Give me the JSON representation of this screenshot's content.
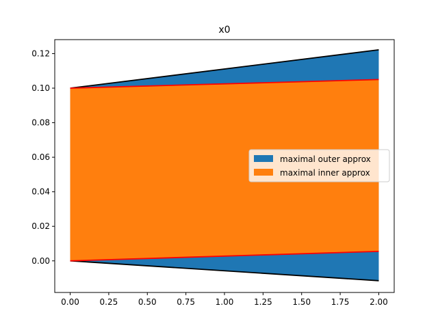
{
  "chart_data": {
    "type": "area",
    "title": "x0",
    "xlabel": "",
    "ylabel": "",
    "xlim": [
      -0.1,
      2.1
    ],
    "ylim": [
      -0.0183,
      0.1281
    ],
    "x_ticks": [
      0.0,
      0.25,
      0.5,
      0.75,
      1.0,
      1.25,
      1.5,
      1.75,
      2.0
    ],
    "x_tick_labels": [
      "0.00",
      "0.25",
      "0.50",
      "0.75",
      "1.00",
      "1.25",
      "1.50",
      "1.75",
      "2.00"
    ],
    "y_ticks": [
      0.0,
      0.02,
      0.04,
      0.06,
      0.08,
      0.1,
      0.12
    ],
    "y_tick_labels": [
      "0.00",
      "0.02",
      "0.04",
      "0.06",
      "0.08",
      "0.10",
      "0.12"
    ],
    "grid": false,
    "legend_position": "center-right",
    "series": [
      {
        "name": "maximal outer approx",
        "color": "#1f77b4",
        "edge_color": "#000000",
        "x": [
          0.0,
          2.0
        ],
        "lower": [
          0.0,
          -0.0115
        ],
        "upper": [
          0.1,
          0.1222
        ]
      },
      {
        "name": "maximal inner approx",
        "color": "#ff7f0e",
        "edge_color": "#ff0000",
        "x": [
          0.0,
          2.0
        ],
        "lower": [
          0.0,
          0.0055
        ],
        "upper": [
          0.1,
          0.105
        ]
      }
    ]
  }
}
